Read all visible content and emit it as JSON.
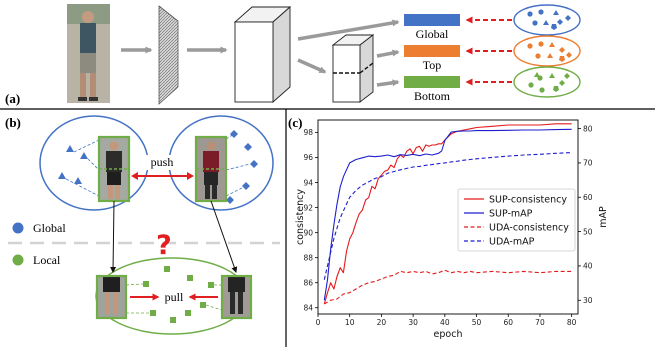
{
  "panels": {
    "a": {
      "label": "(a)",
      "bars": [
        {
          "label": "Global",
          "color": "#4472c4"
        },
        {
          "label": "Top",
          "color": "#ed7d31"
        },
        {
          "label": "Bottom",
          "color": "#70ad47"
        }
      ]
    },
    "b": {
      "label": "(b)",
      "push_label": "push",
      "pull_label": "pull",
      "question_mark": "?",
      "legend": [
        {
          "label": "Global",
          "color": "#4472c4"
        },
        {
          "label": "Local",
          "color": "#70ad47"
        }
      ]
    },
    "c": {
      "label": "(c)"
    }
  },
  "colors": {
    "global": "#4472c4",
    "top": "#ed7d31",
    "bottom": "#70ad47",
    "arrow_red": "#e02020",
    "sup_red": "#e31a1c",
    "sup_blue": "#1f1fd0"
  },
  "chart_data": {
    "type": "line",
    "xlabel": "epoch",
    "ylabel": "consistency",
    "ylabel_right": "mAP",
    "xlim": [
      0,
      82
    ],
    "ylim": [
      83.5,
      99
    ],
    "ylim_right": [
      26,
      82.5
    ],
    "xticks": [
      0,
      10,
      20,
      30,
      40,
      50,
      60,
      70,
      80
    ],
    "yticks": [
      84,
      86,
      88,
      90,
      92,
      94,
      96,
      98
    ],
    "yticks_right": [
      30,
      40,
      50,
      60,
      70,
      80
    ],
    "legend_position": "center-right",
    "series": [
      {
        "name": "SUP-consistency",
        "axis": "left",
        "style": "solid",
        "color": "#e31a1c",
        "x": [
          2,
          3,
          4,
          5,
          6,
          7,
          8,
          9,
          10,
          11,
          12,
          13,
          14,
          15,
          16,
          17,
          18,
          19,
          20,
          21,
          22,
          23,
          24,
          25,
          26,
          27,
          28,
          29,
          30,
          31,
          32,
          33,
          34,
          35,
          36,
          37,
          38,
          39,
          40,
          42,
          44,
          46,
          48,
          50,
          55,
          60,
          65,
          70,
          75,
          80
        ],
        "y": [
          84.3,
          85.2,
          86.0,
          85.5,
          86.5,
          87.2,
          86.8,
          88.5,
          89.5,
          90.0,
          90.8,
          91.5,
          91.8,
          92.6,
          92.8,
          93.7,
          93.5,
          94.3,
          94.6,
          94.9,
          95.0,
          95.4,
          95.2,
          95.9,
          96.2,
          96.0,
          96.5,
          96.7,
          96.3,
          96.8,
          96.9,
          96.5,
          97.0,
          96.9,
          97.0,
          97.0,
          97.1,
          97.1,
          97.4,
          97.9,
          98.1,
          98.2,
          98.3,
          98.4,
          98.5,
          98.6,
          98.6,
          98.6,
          98.7,
          98.7
        ]
      },
      {
        "name": "SUP-mAP",
        "axis": "right",
        "style": "solid",
        "color": "#1f1fd0",
        "x": [
          2,
          3,
          4,
          5,
          6,
          7,
          8,
          9,
          10,
          12,
          14,
          16,
          18,
          20,
          22,
          24,
          26,
          28,
          30,
          32,
          34,
          36,
          38,
          39,
          40,
          42,
          44,
          46,
          48,
          50,
          55,
          60,
          65,
          70,
          75,
          80
        ],
        "y": [
          30,
          36,
          45,
          52,
          58,
          63,
          66,
          68,
          70,
          71,
          71.5,
          72,
          71.8,
          72,
          72.3,
          71.8,
          72.4,
          72.2,
          72.5,
          72.1,
          72.6,
          72.3,
          72.8,
          73.5,
          76.5,
          79,
          79.2,
          79.3,
          79.3,
          79.4,
          79.4,
          79.5,
          79.6,
          79.6,
          79.7,
          79.8
        ]
      },
      {
        "name": "UDA-consistency",
        "axis": "left",
        "style": "dashed",
        "color": "#e31a1c",
        "x": [
          2,
          4,
          6,
          8,
          10,
          12,
          14,
          16,
          18,
          20,
          22,
          24,
          26,
          28,
          30,
          32,
          34,
          36,
          38,
          40,
          42,
          44,
          46,
          48,
          50,
          55,
          60,
          65,
          70,
          75,
          80
        ],
        "y": [
          84.3,
          84.6,
          84.7,
          85.1,
          85.2,
          85.5,
          85.8,
          86.0,
          86.1,
          86.3,
          86.5,
          86.6,
          86.9,
          86.8,
          86.9,
          86.8,
          86.9,
          86.7,
          86.8,
          87.0,
          86.8,
          86.9,
          86.8,
          86.9,
          86.8,
          86.9,
          86.8,
          86.9,
          86.8,
          86.9,
          86.9
        ]
      },
      {
        "name": "UDA-mAP",
        "axis": "right",
        "style": "dashed",
        "color": "#1f1fd0",
        "x": [
          2,
          3,
          4,
          5,
          6,
          7,
          8,
          9,
          10,
          12,
          14,
          16,
          18,
          20,
          22,
          24,
          26,
          28,
          30,
          32,
          34,
          36,
          38,
          40,
          42,
          44,
          46,
          48,
          50,
          55,
          60,
          65,
          70,
          75,
          80
        ],
        "y": [
          36,
          40,
          44,
          48,
          51,
          54,
          56,
          58,
          60,
          62,
          63.5,
          64.5,
          65.5,
          66,
          67,
          67.5,
          68,
          68.4,
          68.8,
          69,
          69.3,
          69.5,
          69.8,
          70,
          70.3,
          70.5,
          70.8,
          71,
          71.2,
          71.6,
          72,
          72.3,
          72.5,
          72.8,
          73
        ]
      }
    ]
  }
}
